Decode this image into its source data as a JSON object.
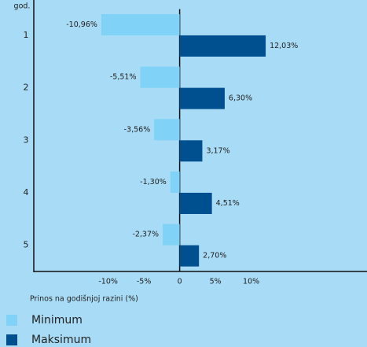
{
  "chart_data": {
    "type": "bar",
    "orientation": "horizontal",
    "y_axis_label": "god.",
    "x_axis_label": "Prinos na godišnjoj razini (%)",
    "categories": [
      "1",
      "2",
      "3",
      "4",
      "5"
    ],
    "series": [
      {
        "name": "Minimum",
        "color": "#80d3f6",
        "values": [
          -10.96,
          -5.51,
          -3.56,
          -1.3,
          -2.37
        ],
        "value_labels": [
          "-10,96%",
          "-5,51%",
          "-3,56%",
          "-1,30%",
          "-2,37%"
        ]
      },
      {
        "name": "Maksimum",
        "color": "#00508f",
        "values": [
          12.03,
          6.3,
          3.17,
          4.51,
          2.7
        ],
        "value_labels": [
          "12,03%",
          "6,30%",
          "3,17%",
          "4,51%",
          "2,70%"
        ]
      }
    ],
    "xlim": [
      -20.4,
      26.2
    ],
    "xticks": [
      {
        "value": -10,
        "label": "-10%"
      },
      {
        "value": -5,
        "label": "-5%"
      },
      0,
      {
        "value": 5,
        "label": "5%"
      },
      {
        "value": 10,
        "label": "10%"
      }
    ],
    "legend": "bottom-left"
  }
}
